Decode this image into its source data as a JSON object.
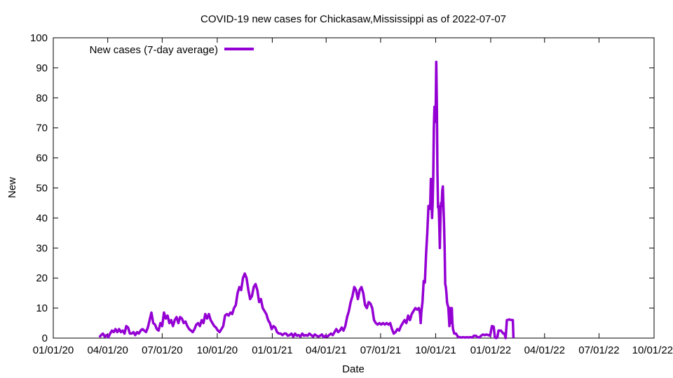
{
  "chart_data": {
    "type": "line",
    "title": "COVID-19 new cases for Chickasaw,Mississippi as of 2022-07-07",
    "xlabel": "Date",
    "ylabel": "New",
    "x_range_days": [
      0,
      1004
    ],
    "ylim": [
      0,
      100
    ],
    "y_ticks": [
      0,
      10,
      20,
      30,
      40,
      50,
      60,
      70,
      80,
      90,
      100
    ],
    "x_ticks": [
      {
        "day": 0,
        "label": "01/01/20"
      },
      {
        "day": 91,
        "label": "04/01/20"
      },
      {
        "day": 182,
        "label": "07/01/20"
      },
      {
        "day": 274,
        "label": "10/01/20"
      },
      {
        "day": 366,
        "label": "01/01/21"
      },
      {
        "day": 456,
        "label": "04/01/21"
      },
      {
        "day": 547,
        "label": "07/01/21"
      },
      {
        "day": 639,
        "label": "10/01/21"
      },
      {
        "day": 731,
        "label": "01/01/22"
      },
      {
        "day": 821,
        "label": "04/01/22"
      },
      {
        "day": 912,
        "label": "07/01/22"
      },
      {
        "day": 1004,
        "label": "10/01/22"
      }
    ],
    "grid": false,
    "legend_position": "top-left",
    "series": [
      {
        "name": "New cases (7-day average)",
        "color": "#9400d3",
        "points": [
          [
            77,
            0.3
          ],
          [
            80,
            1
          ],
          [
            83,
            1.5
          ],
          [
            86,
            0.5
          ],
          [
            89,
            1
          ],
          [
            92,
            0.3
          ],
          [
            95,
            1.5
          ],
          [
            98,
            2.5
          ],
          [
            101,
            2
          ],
          [
            104,
            3
          ],
          [
            107,
            2
          ],
          [
            110,
            3
          ],
          [
            113,
            2
          ],
          [
            116,
            2.5
          ],
          [
            119,
            1.5
          ],
          [
            122,
            4
          ],
          [
            125,
            3.5
          ],
          [
            128,
            1.5
          ],
          [
            131,
            1.5
          ],
          [
            134,
            2
          ],
          [
            137,
            1
          ],
          [
            140,
            2
          ],
          [
            143,
            1.5
          ],
          [
            146,
            2.5
          ],
          [
            149,
            3
          ],
          [
            152,
            2.5
          ],
          [
            155,
            2
          ],
          [
            158,
            3.5
          ],
          [
            161,
            6
          ],
          [
            164,
            8.5
          ],
          [
            167,
            5
          ],
          [
            170,
            4.5
          ],
          [
            173,
            3
          ],
          [
            176,
            2.5
          ],
          [
            179,
            5
          ],
          [
            182,
            4
          ],
          [
            185,
            8.5
          ],
          [
            188,
            6.5
          ],
          [
            191,
            7.5
          ],
          [
            194,
            5
          ],
          [
            197,
            6
          ],
          [
            200,
            4
          ],
          [
            203,
            6
          ],
          [
            206,
            7
          ],
          [
            209,
            5
          ],
          [
            212,
            7
          ],
          [
            215,
            6.5
          ],
          [
            218,
            5
          ],
          [
            221,
            5.5
          ],
          [
            224,
            4
          ],
          [
            227,
            3
          ],
          [
            230,
            2.5
          ],
          [
            233,
            2
          ],
          [
            236,
            3
          ],
          [
            239,
            4.5
          ],
          [
            242,
            5
          ],
          [
            245,
            4
          ],
          [
            248,
            6
          ],
          [
            251,
            5
          ],
          [
            254,
            8
          ],
          [
            257,
            6.5
          ],
          [
            260,
            8
          ],
          [
            263,
            6
          ],
          [
            266,
            5
          ],
          [
            269,
            4
          ],
          [
            272,
            3.5
          ],
          [
            275,
            2.5
          ],
          [
            278,
            2
          ],
          [
            281,
            3
          ],
          [
            284,
            4
          ],
          [
            287,
            7.5
          ],
          [
            290,
            8
          ],
          [
            293,
            7.5
          ],
          [
            296,
            8.5
          ],
          [
            299,
            8
          ],
          [
            302,
            10
          ],
          [
            305,
            11
          ],
          [
            308,
            15
          ],
          [
            311,
            17
          ],
          [
            314,
            16
          ],
          [
            317,
            20
          ],
          [
            320,
            21.5
          ],
          [
            323,
            20
          ],
          [
            326,
            16
          ],
          [
            329,
            13
          ],
          [
            332,
            14
          ],
          [
            335,
            17
          ],
          [
            338,
            18
          ],
          [
            341,
            16
          ],
          [
            344,
            12
          ],
          [
            347,
            13
          ],
          [
            350,
            10
          ],
          [
            353,
            9
          ],
          [
            356,
            8
          ],
          [
            359,
            6
          ],
          [
            362,
            5
          ],
          [
            365,
            3
          ],
          [
            368,
            4
          ],
          [
            371,
            3.5
          ],
          [
            374,
            2
          ],
          [
            377,
            1.5
          ],
          [
            380,
            1.5
          ],
          [
            383,
            1
          ],
          [
            386,
            1.5
          ],
          [
            389,
            1.5
          ],
          [
            392,
            0.8
          ],
          [
            395,
            1
          ],
          [
            398,
            1.5
          ],
          [
            401,
            0.5
          ],
          [
            404,
            1.5
          ],
          [
            407,
            0.8
          ],
          [
            410,
            1
          ],
          [
            413,
            0.5
          ],
          [
            416,
            1.5
          ],
          [
            419,
            0.8
          ],
          [
            422,
            1
          ],
          [
            425,
            0.8
          ],
          [
            428,
            1.5
          ],
          [
            431,
            1
          ],
          [
            434,
            0.5
          ],
          [
            437,
            1.2
          ],
          [
            440,
            0.8
          ],
          [
            443,
            0.5
          ],
          [
            446,
            0.8
          ],
          [
            449,
            1.2
          ],
          [
            452,
            0.3
          ],
          [
            455,
            0.8
          ],
          [
            458,
            0.5
          ],
          [
            461,
            1
          ],
          [
            464,
            1.5
          ],
          [
            467,
            1
          ],
          [
            470,
            2
          ],
          [
            473,
            3
          ],
          [
            476,
            2
          ],
          [
            479,
            2.5
          ],
          [
            482,
            3.5
          ],
          [
            485,
            2.5
          ],
          [
            488,
            4
          ],
          [
            491,
            7
          ],
          [
            494,
            9
          ],
          [
            497,
            12
          ],
          [
            500,
            14
          ],
          [
            503,
            17
          ],
          [
            506,
            16
          ],
          [
            509,
            13
          ],
          [
            512,
            16
          ],
          [
            515,
            17
          ],
          [
            518,
            15
          ],
          [
            521,
            11
          ],
          [
            524,
            10
          ],
          [
            527,
            12
          ],
          [
            530,
            11.5
          ],
          [
            533,
            10
          ],
          [
            536,
            6
          ],
          [
            539,
            5
          ],
          [
            542,
            4.5
          ],
          [
            545,
            5
          ],
          [
            548,
            4.5
          ],
          [
            551,
            5
          ],
          [
            554,
            4.5
          ],
          [
            557,
            5
          ],
          [
            560,
            4.5
          ],
          [
            563,
            5
          ],
          [
            566,
            3
          ],
          [
            569,
            1.5
          ],
          [
            572,
            2
          ],
          [
            575,
            3
          ],
          [
            578,
            2.5
          ],
          [
            581,
            4
          ],
          [
            584,
            5
          ],
          [
            587,
            6
          ],
          [
            590,
            5
          ],
          [
            593,
            7.5
          ],
          [
            596,
            6
          ],
          [
            599,
            8
          ],
          [
            602,
            9
          ],
          [
            605,
            10
          ],
          [
            608,
            9.5
          ],
          [
            611,
            10
          ],
          [
            613,
            8
          ],
          [
            614,
            5
          ],
          [
            615,
            8.5
          ],
          [
            617,
            12
          ],
          [
            619,
            19
          ],
          [
            621,
            18.5
          ],
          [
            623,
            28
          ],
          [
            625,
            35
          ],
          [
            627,
            44
          ],
          [
            629,
            43
          ],
          [
            630,
            45
          ],
          [
            631,
            53
          ],
          [
            632,
            46
          ],
          [
            633,
            40
          ],
          [
            634,
            45
          ],
          [
            635,
            54
          ],
          [
            636,
            70
          ],
          [
            637,
            77
          ],
          [
            638,
            72
          ],
          [
            639,
            75
          ],
          [
            640,
            92
          ],
          [
            641,
            78
          ],
          [
            642,
            55
          ],
          [
            643,
            43.5
          ],
          [
            644,
            44
          ],
          [
            645,
            38
          ],
          [
            646,
            30
          ],
          [
            647,
            40
          ],
          [
            648,
            45
          ],
          [
            649,
            44
          ],
          [
            650,
            49
          ],
          [
            651,
            50.5
          ],
          [
            652,
            44
          ],
          [
            653,
            38
          ],
          [
            654,
            30
          ],
          [
            655,
            18
          ],
          [
            656,
            17
          ],
          [
            657,
            15
          ],
          [
            658,
            12
          ],
          [
            659,
            11
          ],
          [
            660,
            10.5
          ],
          [
            661,
            7.5
          ],
          [
            662,
            4
          ],
          [
            663,
            10
          ],
          [
            664,
            9
          ],
          [
            665,
            5
          ],
          [
            666,
            10
          ],
          [
            667,
            5
          ],
          [
            668,
            3
          ],
          [
            670,
            1.5
          ],
          [
            673,
            1.5
          ],
          [
            676,
            0.5
          ],
          [
            679,
            0.3
          ],
          [
            682,
            0.2
          ],
          [
            685,
            0.3
          ],
          [
            688,
            0.2
          ],
          [
            691,
            0.3
          ],
          [
            694,
            0.2
          ],
          [
            697,
            0.3
          ],
          [
            700,
            0.2
          ],
          [
            703,
            0.8
          ],
          [
            706,
            0.8
          ],
          [
            709,
            0.3
          ],
          [
            712,
            0.2
          ],
          [
            715,
            0.8
          ],
          [
            718,
            1.2
          ],
          [
            721,
            1
          ],
          [
            724,
            1.2
          ],
          [
            727,
            1
          ],
          [
            730,
            0.8
          ],
          [
            733,
            4
          ],
          [
            736,
            3.8
          ],
          [
            738,
            0.2
          ],
          [
            740,
            0
          ],
          [
            742,
            0.2
          ],
          [
            744,
            2.5
          ],
          [
            748,
            2.5
          ],
          [
            752,
            1.5
          ],
          [
            754,
            1.5
          ],
          [
            756,
            0
          ],
          [
            758,
            6
          ],
          [
            762,
            6.2
          ],
          [
            766,
            6
          ],
          [
            768,
            6
          ],
          [
            769,
            0
          ]
        ]
      }
    ]
  }
}
